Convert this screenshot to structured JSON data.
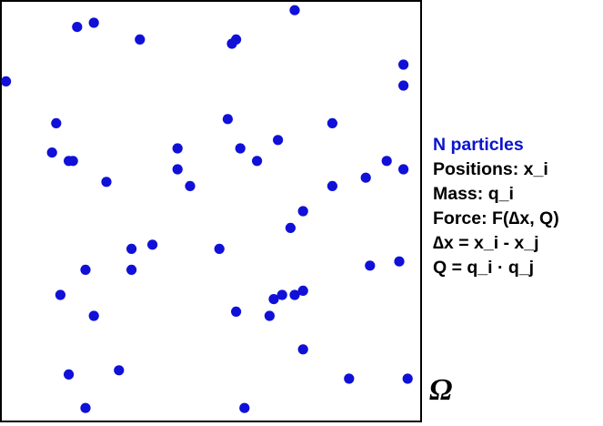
{
  "colors": {
    "particle": "#1010d8",
    "legend_title": "#0a14cc",
    "border": "#000000",
    "background": "#ffffff"
  },
  "legend": {
    "title": "N particles",
    "lines": [
      "Positions: x_i",
      "Mass: q_i",
      "Force: F(∆x, Q)",
      "∆x = x_i - x_j",
      "Q = q_i · q_j"
    ]
  },
  "domain_label": "Ω",
  "particles": [
    [
      0.7,
      0.98
    ],
    [
      0.18,
      0.94
    ],
    [
      0.22,
      0.95
    ],
    [
      0.33,
      0.91
    ],
    [
      0.56,
      0.91
    ],
    [
      0.55,
      0.9
    ],
    [
      0.01,
      0.81
    ],
    [
      0.96,
      0.85
    ],
    [
      0.96,
      0.8
    ],
    [
      0.13,
      0.71
    ],
    [
      0.54,
      0.72
    ],
    [
      0.79,
      0.71
    ],
    [
      0.12,
      0.64
    ],
    [
      0.42,
      0.65
    ],
    [
      0.57,
      0.65
    ],
    [
      0.66,
      0.67
    ],
    [
      0.16,
      0.62
    ],
    [
      0.17,
      0.62
    ],
    [
      0.42,
      0.6
    ],
    [
      0.61,
      0.62
    ],
    [
      0.92,
      0.62
    ],
    [
      0.96,
      0.6
    ],
    [
      0.25,
      0.57
    ],
    [
      0.45,
      0.56
    ],
    [
      0.79,
      0.56
    ],
    [
      0.87,
      0.58
    ],
    [
      0.72,
      0.5
    ],
    [
      0.69,
      0.46
    ],
    [
      0.36,
      0.42
    ],
    [
      0.31,
      0.41
    ],
    [
      0.52,
      0.41
    ],
    [
      0.95,
      0.38
    ],
    [
      0.2,
      0.36
    ],
    [
      0.31,
      0.36
    ],
    [
      0.88,
      0.37
    ],
    [
      0.14,
      0.3
    ],
    [
      0.65,
      0.29
    ],
    [
      0.67,
      0.3
    ],
    [
      0.7,
      0.3
    ],
    [
      0.72,
      0.31
    ],
    [
      0.22,
      0.25
    ],
    [
      0.56,
      0.26
    ],
    [
      0.64,
      0.25
    ],
    [
      0.72,
      0.17
    ],
    [
      0.16,
      0.11
    ],
    [
      0.28,
      0.12
    ],
    [
      0.83,
      0.1
    ],
    [
      0.97,
      0.1
    ],
    [
      0.2,
      0.03
    ],
    [
      0.58,
      0.03
    ]
  ]
}
